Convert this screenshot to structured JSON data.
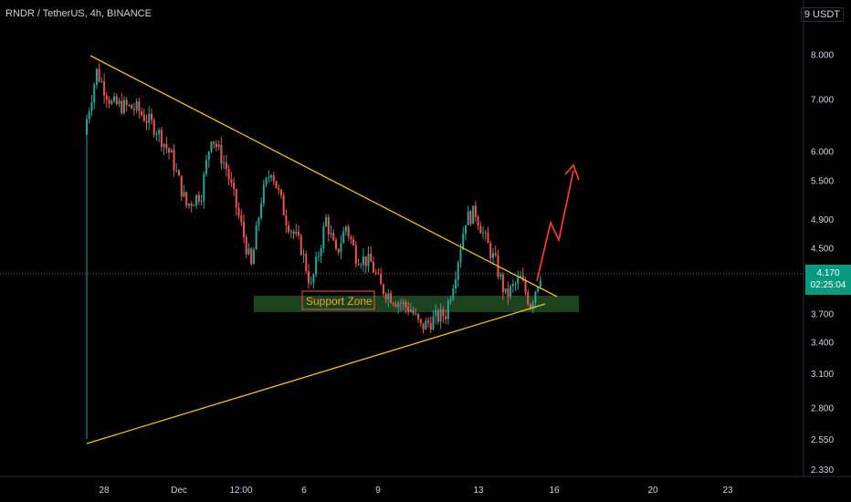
{
  "header": {
    "title": "RNDR / TetherUS, 4h, BINANCE",
    "currency": "9 USDT"
  },
  "price_tag": {
    "price": "4.170",
    "countdown": "02:25:04"
  },
  "colors": {
    "background": "#000000",
    "up": "#26a69a",
    "down": "#ef5350",
    "trendline": "#f2c218",
    "zone_fill": "#1e4620",
    "zone_text": "#f5a623",
    "arrow": "#ef3b2c",
    "price_tag": "#089981"
  },
  "chart_data": {
    "type": "candlestick",
    "title": "RNDR / TetherUS, 4h, BINANCE",
    "scale": "log",
    "ylim": [
      2.33,
      9.0
    ],
    "y_ticks": [
      "8.000",
      "7.000",
      "6.000",
      "5.500",
      "4.900",
      "4.500",
      "4.170",
      "3.700",
      "3.400",
      "3.100",
      "2.800",
      "2.550",
      "2.330"
    ],
    "x_ticks": [
      "28",
      "Dec",
      "12:00",
      "6",
      "9",
      "13",
      "16",
      "20",
      "23"
    ],
    "grid": false,
    "last_price": 4.17,
    "annotations": {
      "support_zone": {
        "label": "Support Zone",
        "low": 3.74,
        "high": 3.9
      },
      "descending_trendline": {
        "from": 8.05,
        "to": 3.92
      },
      "ascending_trendline": {
        "from": 2.55,
        "to": 3.8
      },
      "projection_arrow": {
        "from": 4.17,
        "to": 5.9
      }
    }
  }
}
